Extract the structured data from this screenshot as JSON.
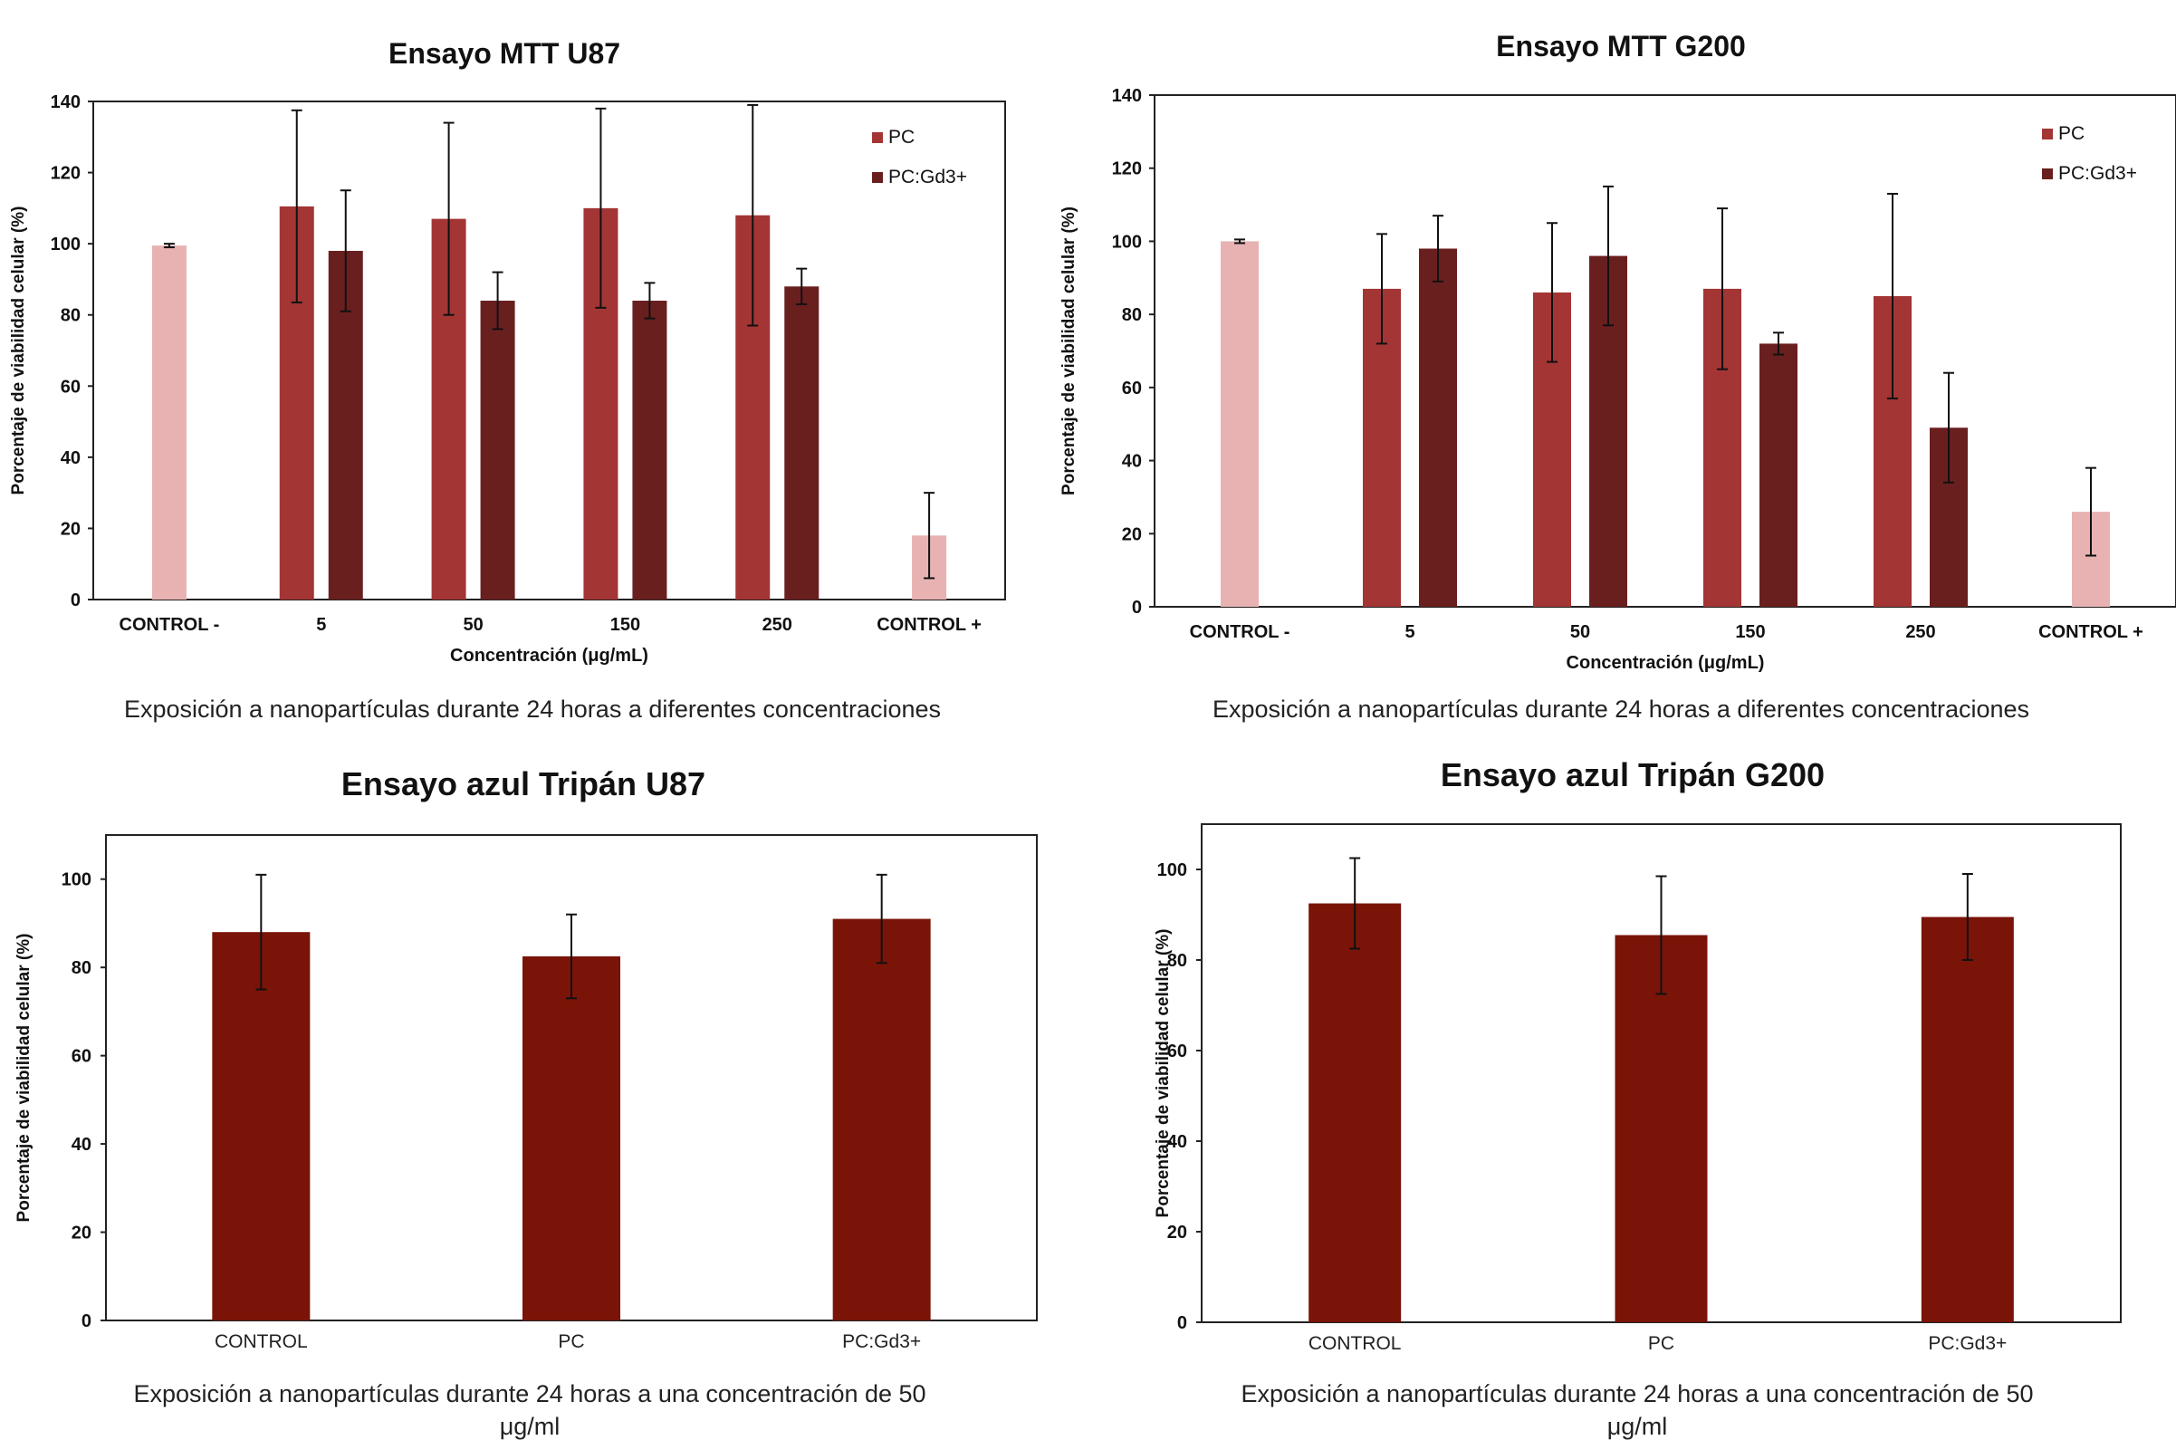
{
  "colors": {
    "control": "#e8b2b2",
    "pc": "#a33535",
    "pcgd": "#6a1f1f",
    "tripan_bar": "#7a1408",
    "error": "#111111",
    "frame": "#222222"
  },
  "chart_data": [
    {
      "id": "mtt_u87",
      "type": "bar",
      "title": "Ensayo MTT U87",
      "xlabel": "Concentración (μg/mL)",
      "ylabel": "Porcentaje de viabilidad celular (%)",
      "caption": "Exposición a nanopartículas durante 24 horas a diferentes concentraciones",
      "categories": [
        "CONTROL -",
        "5",
        "50",
        "150",
        "250",
        "CONTROL +"
      ],
      "ylim": [
        0,
        140
      ],
      "yticks": [
        0,
        20,
        40,
        60,
        80,
        100,
        120,
        140
      ],
      "legend": {
        "position": "top-right",
        "entries": [
          "PC",
          "PC:Gd3+"
        ]
      },
      "controls": [
        {
          "category": "CONTROL -",
          "value": 99.5,
          "err": 0.5
        },
        {
          "category": "CONTROL +",
          "value": 18,
          "err": 12
        }
      ],
      "series": [
        {
          "name": "PC",
          "values": [
            null,
            110.5,
            107,
            110,
            108,
            null
          ],
          "errors": [
            null,
            27,
            27,
            28,
            31,
            null
          ]
        },
        {
          "name": "PC:Gd3+",
          "values": [
            null,
            98,
            84,
            84,
            88,
            null
          ],
          "errors": [
            null,
            17,
            8,
            5,
            5,
            null
          ]
        }
      ]
    },
    {
      "id": "mtt_g200",
      "type": "bar",
      "title": "Ensayo MTT G200",
      "xlabel": "Concentración (μg/mL)",
      "ylabel": "Porcentaje de viabilidad celular (%)",
      "caption": "Exposición a nanopartículas durante 24 horas a diferentes concentraciones",
      "categories": [
        "CONTROL -",
        "5",
        "50",
        "150",
        "250",
        "CONTROL +"
      ],
      "ylim": [
        0,
        140
      ],
      "yticks": [
        0,
        20,
        40,
        60,
        80,
        100,
        120,
        140
      ],
      "legend": {
        "position": "top-right",
        "entries": [
          "PC",
          "PC:Gd3+"
        ]
      },
      "controls": [
        {
          "category": "CONTROL -",
          "value": 100,
          "err": 0.5
        },
        {
          "category": "CONTROL +",
          "value": 26,
          "err": 12
        }
      ],
      "series": [
        {
          "name": "PC",
          "values": [
            null,
            87,
            86,
            87,
            85,
            null
          ],
          "errors": [
            null,
            15,
            19,
            22,
            28,
            null
          ]
        },
        {
          "name": "PC:Gd3+",
          "values": [
            null,
            98,
            96,
            72,
            49,
            null
          ],
          "errors": [
            null,
            9,
            19,
            3,
            15,
            null
          ]
        }
      ]
    },
    {
      "id": "tripan_u87",
      "type": "bar",
      "title": "Ensayo azul Tripán U87",
      "xlabel": "",
      "ylabel": "Porcentaje de viabilidad celular (%)",
      "caption_lines": [
        "Exposición a nanopartículas durante 24 horas a una concentración de  50",
        "μg/ml"
      ],
      "categories": [
        "CONTROL",
        "PC",
        "PC:Gd3+"
      ],
      "ylim": [
        0,
        110
      ],
      "yticks": [
        0,
        20,
        40,
        60,
        80,
        100
      ],
      "values": [
        88,
        82.5,
        91
      ],
      "errors": [
        13,
        9.5,
        10
      ]
    },
    {
      "id": "tripan_g200",
      "type": "bar",
      "title": "Ensayo azul Tripán G200",
      "xlabel": "",
      "ylabel": "Porcentaje de viabilidad celular (%)",
      "caption_lines": [
        "Exposición a nanopartículas durante 24 horas a una concentración de  50",
        "μg/ml"
      ],
      "categories": [
        "CONTROL",
        "PC",
        "PC:Gd3+"
      ],
      "ylim": [
        0,
        110
      ],
      "yticks": [
        0,
        20,
        40,
        60,
        80,
        100
      ],
      "values": [
        92.5,
        85.5,
        89.5
      ],
      "errors": [
        10,
        13,
        9.5
      ]
    }
  ]
}
